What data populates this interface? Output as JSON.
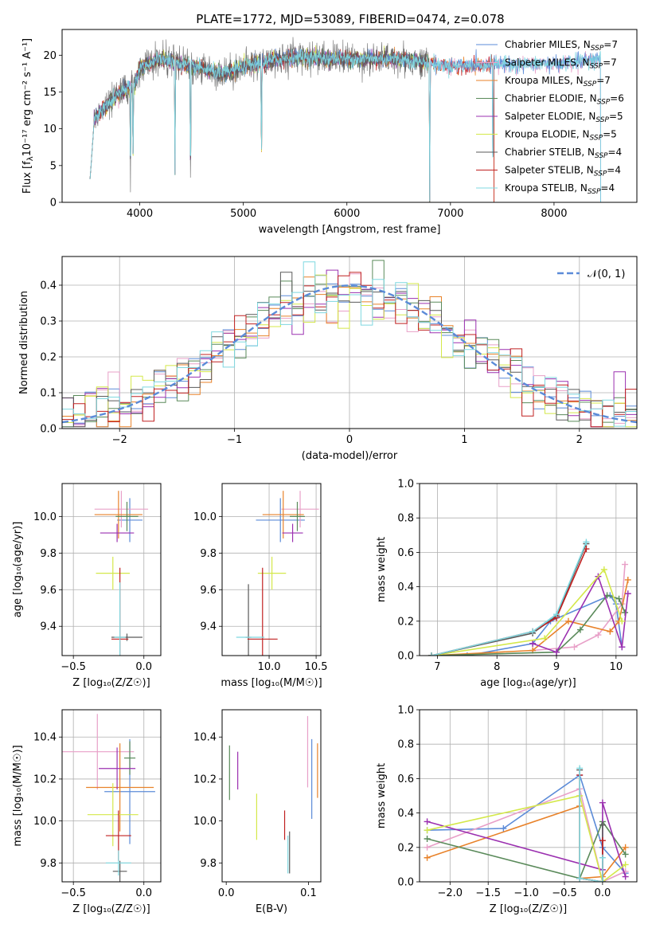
{
  "figure_title": "PLATE=1772, MJD=53089, FIBERID=0474, z=0.078",
  "legend_entries": [
    {
      "label": "Chabrier MILES, N",
      "sub": "SSP",
      "suffix": "=7",
      "color": "#5b8bd8"
    },
    {
      "label": "Salpeter MILES, N",
      "sub": "SSP",
      "suffix": "=7",
      "color": "#e8a0c8"
    },
    {
      "label": "Kroupa MILES, N",
      "sub": "SSP",
      "suffix": "=7",
      "color": "#e8822a"
    },
    {
      "label": "Chabrier ELODIE, N",
      "sub": "SSP",
      "suffix": "=6",
      "color": "#5a8a5a"
    },
    {
      "label": "Salpeter ELODIE, N",
      "sub": "SSP",
      "suffix": "=5",
      "color": "#9b30b0"
    },
    {
      "label": "Kroupa ELODIE, N",
      "sub": "SSP",
      "suffix": "=5",
      "color": "#d4e84a"
    },
    {
      "label": "Chabrier STELIB, N",
      "sub": "SSP",
      "suffix": "=4",
      "color": "#5a5a5a"
    },
    {
      "label": "Salpeter STELIB, N",
      "sub": "SSP",
      "suffix": "=4",
      "color": "#c02020"
    },
    {
      "label": "Kroupa STELIB, N",
      "sub": "SSP",
      "suffix": "=4",
      "color": "#7fd8e0"
    }
  ],
  "chart_data": [
    {
      "id": "spectrum",
      "type": "line",
      "title": "PLATE=1772, MJD=53089, FIBERID=0474, z=0.078",
      "xlabel": "wavelength [Angstrom, rest frame]",
      "ylabel_main": "Flux [f",
      "ylabel_sub": "λ",
      "ylabel_rest": "10⁻¹⁷ erg cm⁻² s⁻¹ A⁻¹]",
      "xlim": [
        3250,
        8800
      ],
      "ylim": [
        0,
        23.5
      ],
      "xticks": [
        4000,
        5000,
        6000,
        7000,
        8000
      ],
      "yticks": [
        0,
        5,
        10,
        15,
        20
      ],
      "continuum": {
        "x": [
          3520,
          3600,
          3800,
          3950,
          4000,
          4200,
          4500,
          4800,
          5000,
          5500,
          6000,
          6500,
          7000,
          7400,
          8000,
          8450
        ],
        "y": [
          10.5,
          12,
          14.8,
          16,
          18.3,
          19.5,
          18.5,
          17.5,
          18.5,
          19.8,
          19.5,
          19.5,
          18.5,
          18.8,
          18.8,
          19.5
        ]
      },
      "absorption_lines": [
        {
          "x": 3540,
          "depth": 0.1
        },
        {
          "x": 3910,
          "depth": 0.1
        },
        {
          "x": 3935,
          "depth": 0.3
        },
        {
          "x": 4340,
          "depth": 0.2
        },
        {
          "x": 4490,
          "depth": 0.01
        },
        {
          "x": 5175,
          "depth": 0.25
        },
        {
          "x": 6800,
          "depth": 0.01
        },
        {
          "x": 7410,
          "depth": 0.01
        }
      ]
    },
    {
      "id": "residuals",
      "type": "histogram",
      "xlabel": "(data-model)/error",
      "ylabel": "Normed distribution",
      "xlim": [
        -2.5,
        2.5
      ],
      "ylim": [
        0,
        0.48
      ],
      "xticks": [
        -2,
        -1,
        0,
        1,
        2
      ],
      "yticks": [
        0.0,
        0.1,
        0.2,
        0.3,
        0.4
      ],
      "grid": true,
      "reference_curve": {
        "label": "𝒩(0, 1)",
        "mean": 0,
        "sigma": 1,
        "color": "#5b8bd8"
      },
      "bin_width": 0.1,
      "grid_on": true
    },
    {
      "id": "age_vs_Z",
      "type": "errorbar",
      "xlabel": "Z [log₁₀(Z/Z☉)]",
      "ylabel": "age  [log₁₀(age/yr)]",
      "xlim": [
        -0.58,
        0.12
      ],
      "ylim": [
        9.24,
        10.18
      ],
      "xticks": [
        -0.5,
        0.0
      ],
      "yticks": [
        9.4,
        9.6,
        9.8,
        10.0
      ],
      "grid": true,
      "points": [
        {
          "x": -0.1,
          "xerr": 0.09,
          "y": 9.98,
          "yerr": 0.12,
          "color": "#5b8bd8"
        },
        {
          "x": -0.16,
          "xerr": 0.19,
          "y": 10.04,
          "yerr": 0.1,
          "color": "#e8a0c8"
        },
        {
          "x": -0.18,
          "xerr": 0.17,
          "y": 10.01,
          "yerr": 0.13,
          "color": "#e8822a"
        },
        {
          "x": -0.12,
          "xerr": 0.08,
          "y": 10.0,
          "yerr": 0.08,
          "color": "#5a8a5a"
        },
        {
          "x": -0.19,
          "xerr": 0.12,
          "y": 9.91,
          "yerr": 0.05,
          "color": "#9b30b0"
        },
        {
          "x": -0.22,
          "xerr": 0.12,
          "y": 9.69,
          "yerr": 0.09,
          "color": "#d4e84a"
        },
        {
          "x": -0.12,
          "xerr": 0.11,
          "y": 9.34,
          "yerr": 0.02,
          "color": "#5a5a5a"
        },
        {
          "x": -0.17,
          "xerr": 0.06,
          "y": 9.33,
          "yerr": 0.39,
          "color": "#c02020"
        },
        {
          "x": -0.17,
          "xerr": 0.04,
          "y": 9.34,
          "yerr": 0.3,
          "color": "#7fd8e0"
        }
      ]
    },
    {
      "id": "age_vs_mass",
      "type": "errorbar",
      "xlabel": "mass [log₁₀(M/M☉)]",
      "xlim": [
        9.5,
        10.55
      ],
      "ylim": [
        9.24,
        10.18
      ],
      "xticks": [
        10.0,
        10.5
      ],
      "yticks": [
        9.4,
        9.6,
        9.8,
        10.0
      ],
      "grid": true,
      "points": [
        {
          "x": 10.12,
          "xerr": 0.26,
          "y": 9.98,
          "yerr": 0.12,
          "color": "#5b8bd8"
        },
        {
          "x": 10.33,
          "xerr": 0.2,
          "y": 10.04,
          "yerr": 0.1,
          "color": "#e8a0c8"
        },
        {
          "x": 10.15,
          "xerr": 0.22,
          "y": 10.01,
          "yerr": 0.13,
          "color": "#e8822a"
        },
        {
          "x": 10.3,
          "xerr": 0.08,
          "y": 10.0,
          "yerr": 0.08,
          "color": "#5a8a5a"
        },
        {
          "x": 10.25,
          "xerr": 0.11,
          "y": 9.91,
          "yerr": 0.05,
          "color": "#9b30b0"
        },
        {
          "x": 10.03,
          "xerr": 0.15,
          "y": 9.69,
          "yerr": 0.09,
          "color": "#d4e84a"
        },
        {
          "x": 9.78,
          "xerr": 0.03,
          "y": 9.34,
          "yerr": 0.29,
          "color": "#5a5a5a"
        },
        {
          "x": 9.93,
          "xerr": 0.16,
          "y": 9.33,
          "yerr": 0.39,
          "color": "#c02020"
        },
        {
          "x": 9.8,
          "xerr": 0.15,
          "y": 9.34,
          "yerr": 0.0,
          "color": "#7fd8e0"
        }
      ]
    },
    {
      "id": "weight_vs_age",
      "type": "line",
      "xlabel": "age  [log₁₀(age/yr)]",
      "ylabel": "mass weight",
      "xlim": [
        6.7,
        10.35
      ],
      "ylim": [
        0,
        1.0
      ],
      "xticks": [
        7,
        8,
        9,
        10
      ],
      "yticks": [
        0.0,
        0.2,
        0.4,
        0.6,
        0.8,
        1.0
      ],
      "grid": true,
      "series": [
        {
          "color": "#5b8bd8",
          "x": [
            7.5,
            8.6,
            8.9,
            9.9,
            10.0,
            10.1
          ],
          "y": [
            0.0,
            0.07,
            0.2,
            0.35,
            0.3,
            0.05
          ]
        },
        {
          "color": "#e8a0c8",
          "x": [
            8.6,
            9.3,
            9.7,
            10.1,
            10.15
          ],
          "y": [
            0.03,
            0.05,
            0.12,
            0.3,
            0.53
          ]
        },
        {
          "color": "#e8822a",
          "x": [
            6.9,
            8.6,
            9.2,
            9.9,
            10.05,
            10.2
          ],
          "y": [
            0.0,
            0.03,
            0.2,
            0.14,
            0.2,
            0.44
          ]
        },
        {
          "color": "#5a8a5a",
          "x": [
            6.9,
            9.0,
            9.4,
            9.85,
            10.05,
            10.15
          ],
          "y": [
            0.0,
            0.02,
            0.15,
            0.35,
            0.33,
            0.25
          ]
        },
        {
          "color": "#9b30b0",
          "x": [
            8.6,
            9.0,
            9.7,
            10.1,
            10.2
          ],
          "y": [
            0.07,
            0.02,
            0.46,
            0.05,
            0.36
          ]
        },
        {
          "color": "#d4e84a",
          "x": [
            6.9,
            8.8,
            9.8,
            10.1
          ],
          "y": [
            0.0,
            0.1,
            0.5,
            0.2
          ]
        },
        {
          "color": "#5a5a5a",
          "x": [
            6.9,
            8.6,
            9.0,
            9.5
          ],
          "y": [
            0.0,
            0.13,
            0.23,
            0.65
          ]
        },
        {
          "color": "#c02020",
          "x": [
            6.9,
            8.6,
            9.0,
            9.5
          ],
          "y": [
            0.0,
            0.14,
            0.22,
            0.62
          ]
        },
        {
          "color": "#7fd8e0",
          "x": [
            6.9,
            8.6,
            9.0,
            9.5
          ],
          "y": [
            0.0,
            0.14,
            0.24,
            0.66
          ]
        }
      ]
    },
    {
      "id": "mass_vs_Z",
      "type": "errorbar",
      "xlabel": "Z [log₁₀(Z/Z☉)]",
      "ylabel": "mass [log₁₀(M/M☉)]",
      "xlim": [
        -0.58,
        0.12
      ],
      "ylim": [
        9.71,
        10.53
      ],
      "xticks": [
        -0.5,
        0.0
      ],
      "yticks": [
        9.8,
        10.0,
        10.2,
        10.4
      ],
      "grid": true,
      "points": [
        {
          "x": -0.1,
          "xerr": 0.18,
          "y": 10.14,
          "yerr": 0.25,
          "color": "#5b8bd8"
        },
        {
          "x": -0.33,
          "xerr": 0.26,
          "y": 10.33,
          "yerr": 0.18,
          "color": "#e8a0c8"
        },
        {
          "x": -0.17,
          "xerr": 0.24,
          "y": 10.16,
          "yerr": 0.21,
          "color": "#e8822a"
        },
        {
          "x": -0.1,
          "xerr": 0.04,
          "y": 10.3,
          "yerr": 0.08,
          "color": "#5a8a5a"
        },
        {
          "x": -0.19,
          "xerr": 0.13,
          "y": 10.25,
          "yerr": 0.1,
          "color": "#9b30b0"
        },
        {
          "x": -0.22,
          "xerr": 0.18,
          "y": 10.03,
          "yerr": 0.15,
          "color": "#d4e84a"
        },
        {
          "x": -0.17,
          "xerr": 0.05,
          "y": 9.76,
          "yerr": 0.05,
          "color": "#5a5a5a"
        },
        {
          "x": -0.18,
          "xerr": 0.09,
          "y": 9.93,
          "yerr": 0.12,
          "color": "#c02020"
        },
        {
          "x": -0.18,
          "xerr": 0.09,
          "y": 9.8,
          "yerr": 0.06,
          "color": "#7fd8e0"
        }
      ]
    },
    {
      "id": "mass_vs_EBV",
      "type": "errorbar",
      "xlabel": "E(B-V)",
      "xlim": [
        -0.005,
        0.115
      ],
      "ylim": [
        9.71,
        10.53
      ],
      "xticks": [
        0.0,
        0.1
      ],
      "yticks": [
        9.8,
        10.0,
        10.2,
        10.4
      ],
      "grid": false,
      "points": [
        {
          "x": 0.104,
          "y": 10.2,
          "yerr": 0.19,
          "color": "#5b8bd8"
        },
        {
          "x": 0.099,
          "y": 10.33,
          "yerr": 0.17,
          "color": "#e8a0c8"
        },
        {
          "x": 0.111,
          "y": 10.24,
          "yerr": 0.13,
          "color": "#e8822a"
        },
        {
          "x": 0.004,
          "y": 10.23,
          "yerr": 0.13,
          "color": "#5a8a5a"
        },
        {
          "x": 0.014,
          "y": 10.24,
          "yerr": 0.09,
          "color": "#9b30b0"
        },
        {
          "x": 0.037,
          "y": 10.02,
          "yerr": 0.11,
          "color": "#d4e84a"
        },
        {
          "x": 0.077,
          "y": 9.85,
          "yerr": 0.1,
          "color": "#5a5a5a"
        },
        {
          "x": 0.071,
          "y": 9.98,
          "yerr": 0.07,
          "color": "#c02020"
        },
        {
          "x": 0.075,
          "y": 9.84,
          "yerr": 0.09,
          "color": "#7fd8e0"
        }
      ]
    },
    {
      "id": "weight_vs_Z",
      "type": "line",
      "xlabel": "Z [log₁₀(Z/Z☉)]",
      "ylabel": "mass weight",
      "xlim": [
        -2.4,
        0.45
      ],
      "ylim": [
        0,
        1.0
      ],
      "xticks": [
        -2.0,
        -1.5,
        -1.0,
        -0.5,
        0.0
      ],
      "yticks": [
        0.0,
        0.2,
        0.4,
        0.6,
        0.8,
        1.0
      ],
      "grid": true,
      "series": [
        {
          "color": "#5b8bd8",
          "x": [
            -2.3,
            -1.3,
            -0.3,
            0.0,
            0.3
          ],
          "y": [
            0.3,
            0.31,
            0.62,
            0.2,
            0.05
          ]
        },
        {
          "color": "#e8a0c8",
          "x": [
            -2.3,
            -0.3,
            0.0,
            0.3
          ],
          "y": [
            0.2,
            0.54,
            0.0,
            0.06
          ]
        },
        {
          "color": "#e8822a",
          "x": [
            -2.3,
            -0.3,
            -0.3,
            0.0,
            0.3
          ],
          "y": [
            0.14,
            0.44,
            0.02,
            0.03,
            0.2
          ]
        },
        {
          "color": "#5a8a5a",
          "x": [
            -2.3,
            -0.3,
            0.0,
            0.3
          ],
          "y": [
            0.25,
            0.02,
            0.35,
            0.16
          ]
        },
        {
          "color": "#9b30b0",
          "x": [
            -2.3,
            0.0,
            0.0,
            0.3
          ],
          "y": [
            0.35,
            0.07,
            0.46,
            0.03
          ]
        },
        {
          "color": "#d4e84a",
          "x": [
            -2.3,
            -0.3,
            0.0,
            0.3
          ],
          "y": [
            0.3,
            0.5,
            0.0,
            0.1
          ]
        },
        {
          "color": "#5a5a5a",
          "x": [
            -0.3,
            -0.3,
            0.0,
            0.0
          ],
          "y": [
            0.65,
            0.02,
            0.0,
            0.33
          ]
        },
        {
          "color": "#c02020",
          "x": [
            -0.3,
            -0.3,
            0.0,
            0.0
          ],
          "y": [
            0.62,
            0.02,
            0.0,
            0.24
          ]
        },
        {
          "color": "#7fd8e0",
          "x": [
            -0.3,
            -0.3,
            0.0,
            0.0
          ],
          "y": [
            0.66,
            0.02,
            0.0,
            0.14
          ]
        }
      ]
    }
  ]
}
